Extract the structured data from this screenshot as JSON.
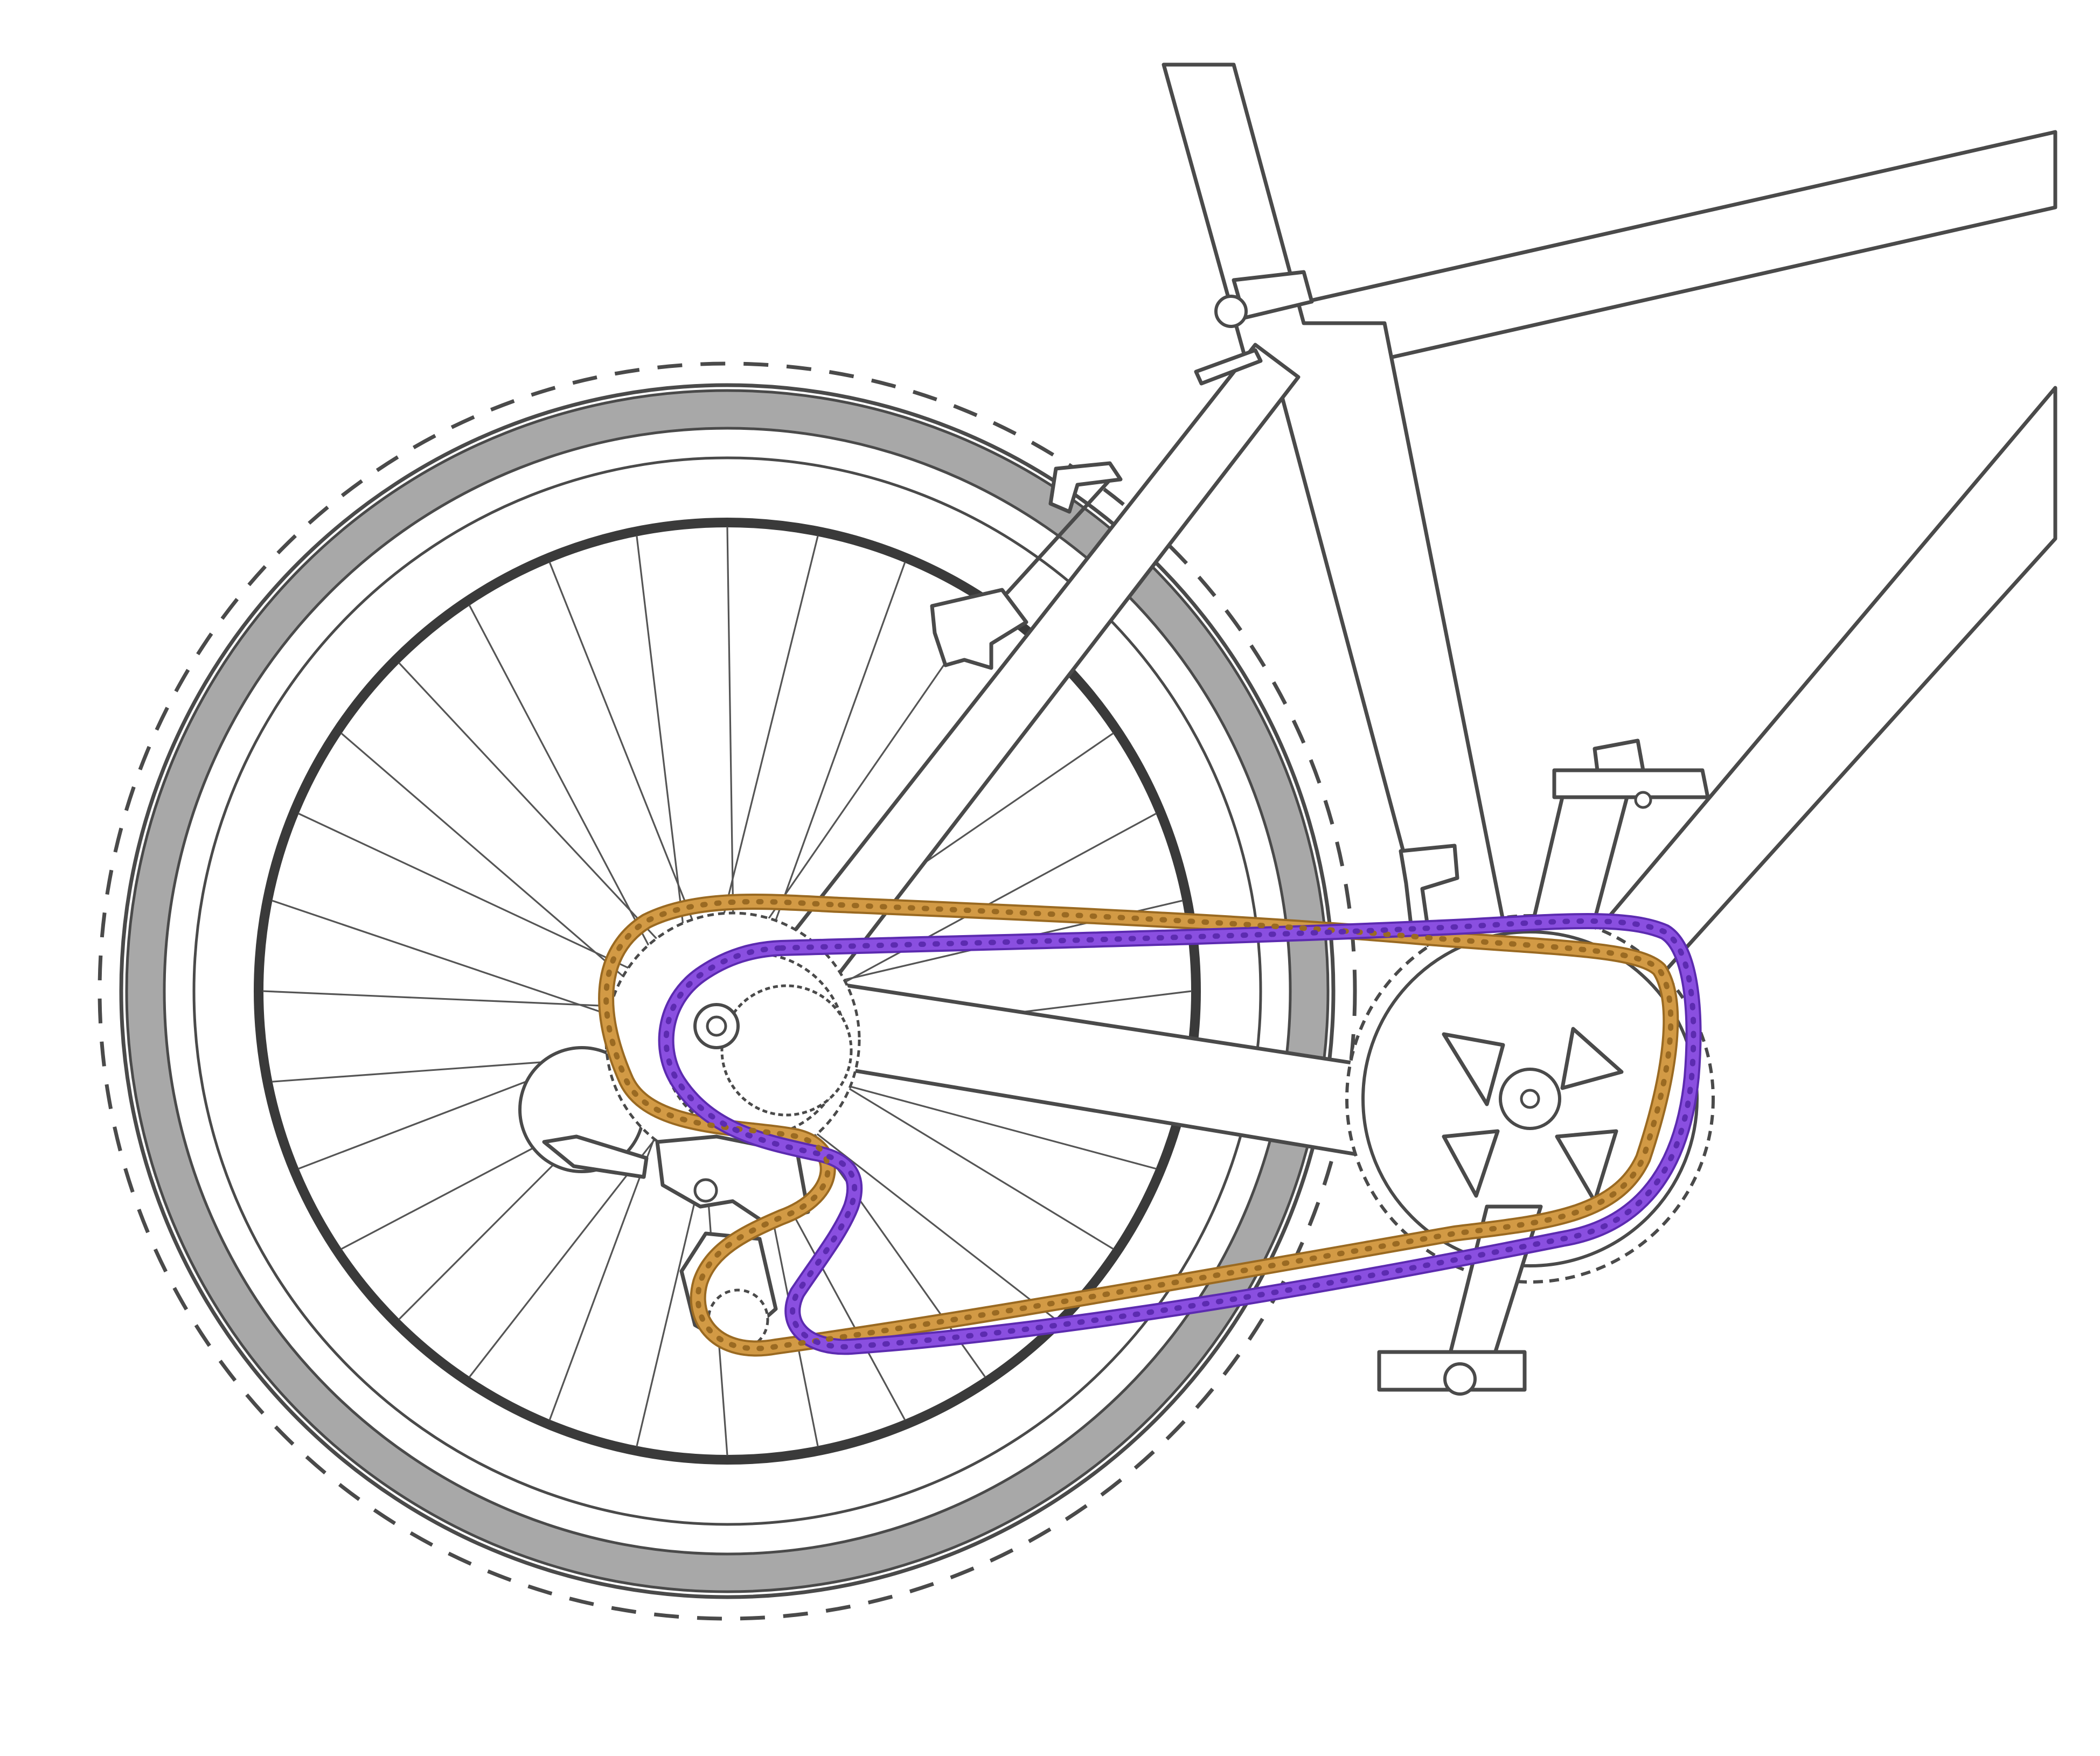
{
  "colors": {
    "background": "#ffffff",
    "outline": "#4a4a4a",
    "tire_band": "#a8a8a8",
    "rim": "#3a3a3a",
    "chain_gold": "#d29a45",
    "chain_gold_dark": "#9a6a22",
    "chain_purple": "#8a4fe0",
    "chain_purple_dark": "#5c2bb0"
  },
  "scene": {
    "subject": "bicycle-rear-drivetrain",
    "chains": [
      {
        "name": "gold-chain",
        "color_key": "chain_gold"
      },
      {
        "name": "purple-chain",
        "color_key": "chain_purple"
      }
    ]
  }
}
